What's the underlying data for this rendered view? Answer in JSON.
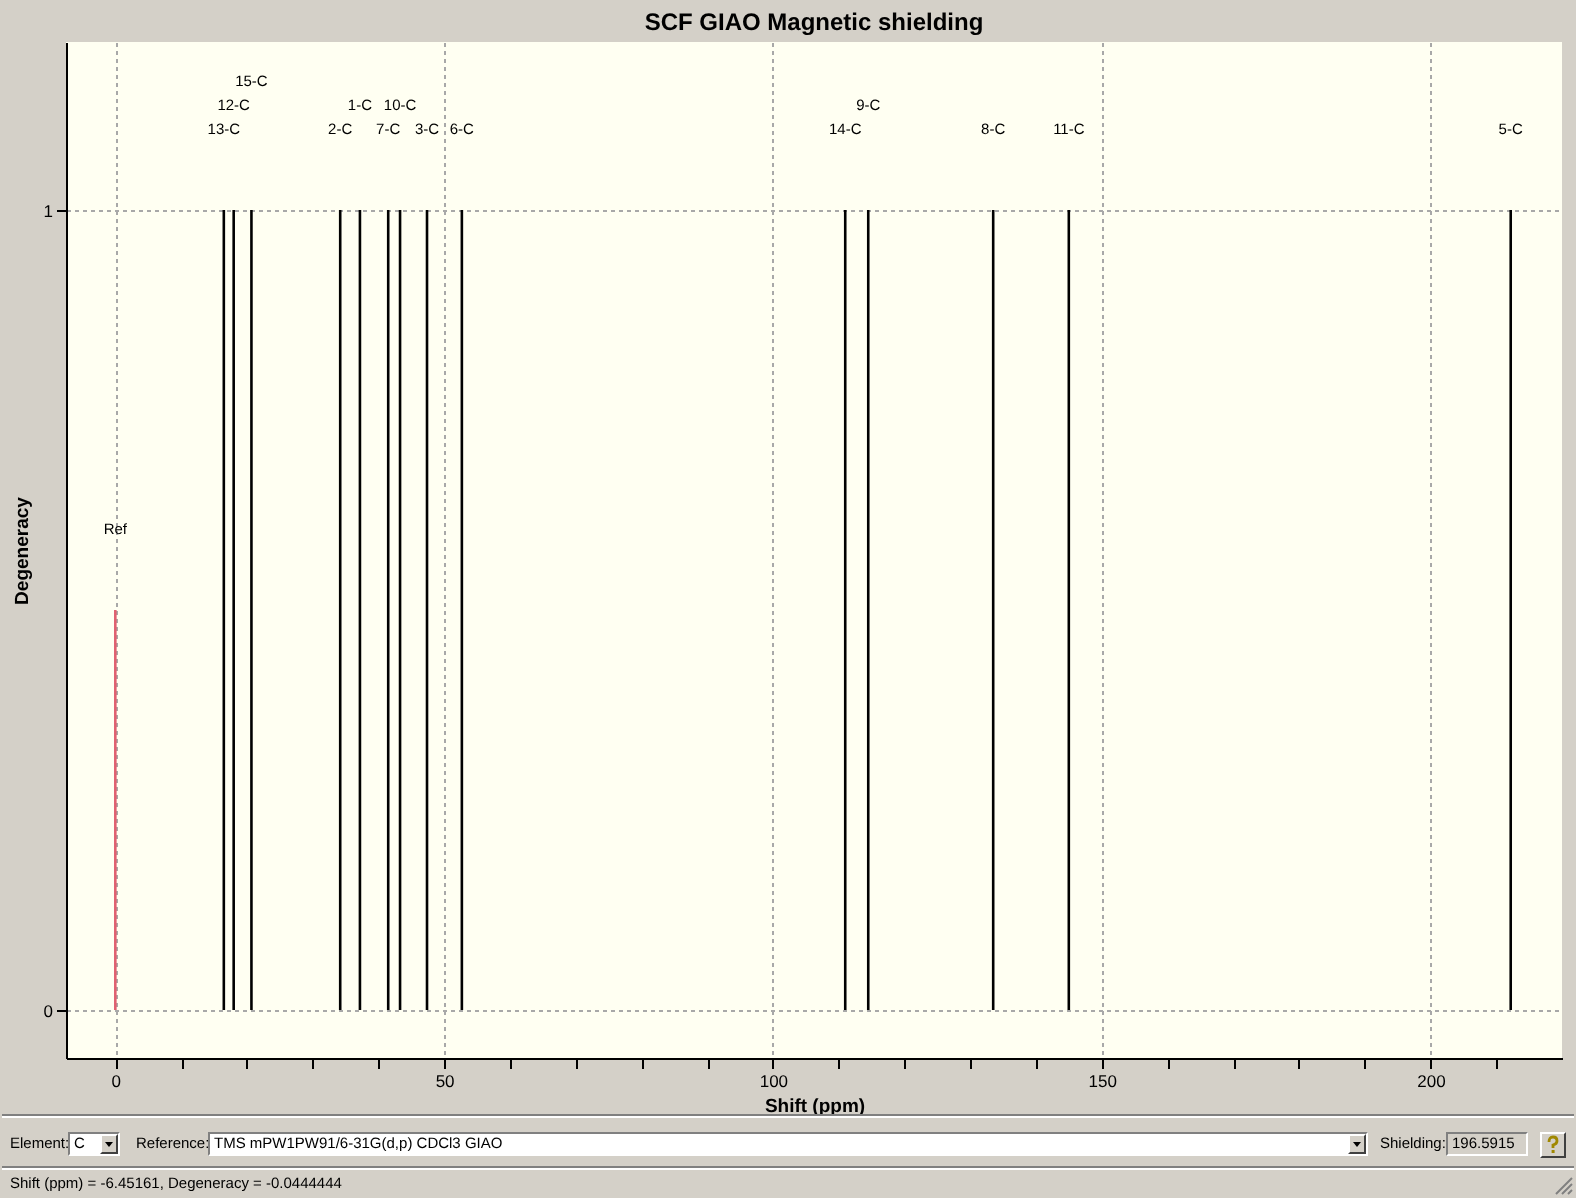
{
  "chart_data": {
    "type": "bar",
    "title": "SCF GIAO Magnetic shielding",
    "xlabel": "Shift (ppm)",
    "ylabel": "Degeneracy",
    "series": [
      {
        "color": "#000000",
        "x": [
          16.5,
          18.0,
          20.7,
          34.2,
          37.2,
          41.5,
          43.3,
          47.4,
          52.7,
          111.0,
          114.5,
          133.5,
          145.0,
          212.2
        ],
        "values": [
          1,
          1,
          1,
          1,
          1,
          1,
          1,
          1,
          1,
          1,
          1,
          1,
          1,
          1
        ]
      },
      {
        "color": "#e06070",
        "x": [
          0
        ],
        "values": [
          0.5
        ]
      }
    ],
    "xlim": [
      -7.5,
      220
    ],
    "xticks": [
      0,
      {
        "value": 10,
        "label": null
      },
      {
        "value": 20,
        "label": null
      },
      {
        "value": 30,
        "label": null
      },
      {
        "value": 40,
        "label": null
      },
      50,
      {
        "value": 60,
        "label": null
      },
      {
        "value": 70,
        "label": null
      },
      {
        "value": 80,
        "label": null
      },
      {
        "value": 90,
        "label": null
      },
      100,
      {
        "value": 110,
        "label": null
      },
      {
        "value": 120,
        "label": null
      },
      {
        "value": 130,
        "label": null
      },
      {
        "value": 140,
        "label": null
      },
      150,
      {
        "value": 160,
        "label": null
      },
      {
        "value": 170,
        "label": null
      },
      {
        "value": 180,
        "label": null
      },
      {
        "value": 190,
        "label": null
      },
      200,
      {
        "value": 210,
        "label": null
      }
    ],
    "ylim": [
      -0.06,
      1.21
    ],
    "yticks": [
      0,
      1
    ],
    "grid": true,
    "annotations": [
      "13-C",
      "12-C",
      "15-C",
      "2-C",
      "1-C",
      "7-C",
      "10-C",
      "3-C",
      "6-C",
      "14-C",
      "9-C",
      "8-C",
      "11-C",
      "5-C",
      "Ref",
      "Element:",
      "C",
      "Reference:",
      "TMS mPW1PW91/6-31G(d,p) CDCl3 GIAO",
      "Shielding:",
      "196.5915",
      "Shift (ppm) = -6.45161,  Degeneracy = -0.0444444"
    ]
  }
}
